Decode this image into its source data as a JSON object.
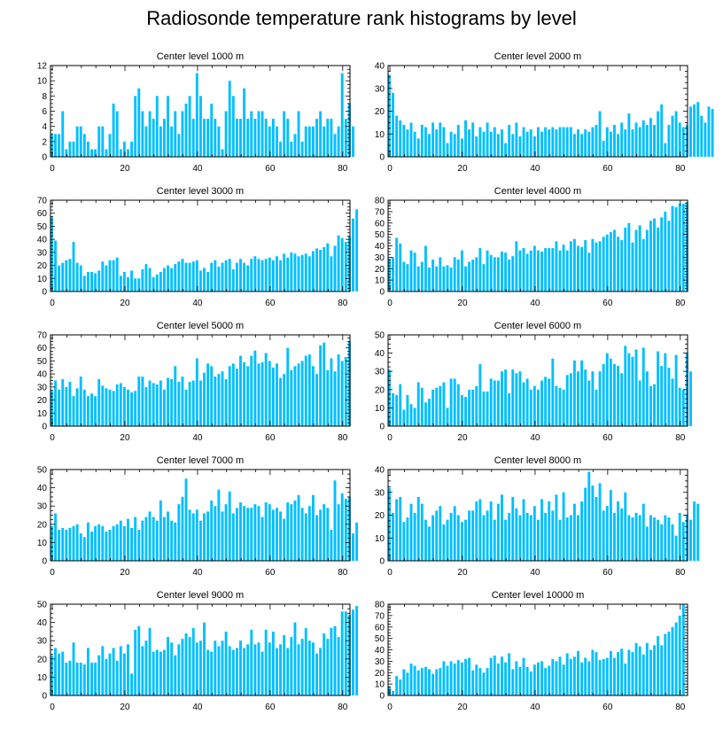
{
  "title": "Radiosonde temperature rank histograms by level",
  "bar_color": "#00bfff",
  "chart_data": [
    {
      "type": "bar",
      "title": "Center level 1000 m",
      "ylim": [
        0,
        12
      ],
      "yticks": [
        0,
        2,
        4,
        6,
        8,
        10,
        12
      ],
      "xlim": [
        -0.5,
        82
      ],
      "xticks": [
        0,
        20,
        40,
        60,
        80
      ],
      "values": [
        3,
        3,
        3,
        6,
        1,
        2,
        2,
        4,
        4,
        3,
        2,
        1,
        1,
        4,
        4,
        1,
        3,
        7,
        6,
        1,
        2,
        1,
        2,
        8,
        9,
        6,
        4,
        6,
        5,
        8,
        4,
        5,
        8,
        4,
        6,
        3,
        6,
        7,
        8,
        5,
        11,
        8,
        5,
        5,
        7,
        5,
        4,
        1,
        6,
        10,
        8,
        5,
        5,
        9,
        5,
        6,
        5,
        6,
        6,
        5,
        4,
        5,
        4,
        2,
        6,
        5,
        2,
        3,
        6,
        2,
        4,
        4,
        4,
        5,
        6,
        4,
        5,
        5,
        3,
        4,
        11,
        5,
        7,
        4
      ]
    },
    {
      "type": "bar",
      "title": "Center level 2000 m",
      "ylim": [
        0,
        40
      ],
      "yticks": [
        0,
        10,
        20,
        30,
        40
      ],
      "xlim": [
        -0.5,
        82
      ],
      "xticks": [
        0,
        20,
        40,
        60,
        80
      ],
      "values": [
        36,
        28,
        18,
        16,
        14,
        12,
        15,
        11,
        8,
        14,
        13,
        10,
        15,
        12,
        15,
        13,
        6,
        11,
        10,
        14,
        8,
        16,
        12,
        15,
        9,
        13,
        11,
        15,
        11,
        13,
        10,
        12,
        6,
        14,
        10,
        15,
        9,
        13,
        11,
        12,
        9,
        13,
        11,
        13,
        12,
        13,
        12,
        13,
        13,
        13,
        13,
        10,
        12,
        10,
        12,
        11,
        13,
        14,
        20,
        7,
        13,
        11,
        14,
        10,
        15,
        12,
        19,
        12,
        15,
        13,
        16,
        14,
        17,
        14,
        20,
        23,
        6,
        14,
        18,
        20,
        15,
        13,
        14,
        22,
        23,
        24,
        18,
        15,
        22,
        21
      ]
    },
    {
      "type": "bar",
      "title": "Center level 3000 m",
      "ylim": [
        0,
        70
      ],
      "yticks": [
        0,
        10,
        20,
        30,
        40,
        50,
        60,
        70
      ],
      "xlim": [
        -0.5,
        82
      ],
      "xticks": [
        0,
        20,
        40,
        60,
        80
      ],
      "values": [
        57,
        39,
        20,
        22,
        24,
        25,
        38,
        22,
        20,
        12,
        15,
        15,
        14,
        16,
        23,
        20,
        24,
        24,
        26,
        12,
        15,
        11,
        16,
        10,
        10,
        17,
        21,
        18,
        11,
        13,
        15,
        18,
        20,
        18,
        21,
        23,
        25,
        22,
        22,
        23,
        24,
        16,
        18,
        15,
        22,
        24,
        19,
        22,
        24,
        25,
        17,
        22,
        25,
        22,
        20,
        25,
        27,
        25,
        24,
        25,
        26,
        24,
        27,
        24,
        29,
        26,
        30,
        29,
        27,
        28,
        29,
        27,
        31,
        33,
        32,
        34,
        37,
        27,
        35,
        43,
        41,
        38,
        42,
        56,
        63
      ]
    },
    {
      "type": "bar",
      "title": "Center level 4000 m",
      "ylim": [
        0,
        80
      ],
      "yticks": [
        0,
        10,
        20,
        30,
        40,
        50,
        60,
        70,
        80
      ],
      "xlim": [
        -0.5,
        82
      ],
      "xticks": [
        0,
        20,
        40,
        60,
        80
      ],
      "values": [
        29,
        30,
        47,
        42,
        26,
        24,
        36,
        34,
        22,
        26,
        40,
        21,
        28,
        22,
        30,
        22,
        23,
        21,
        30,
        28,
        36,
        22,
        26,
        28,
        30,
        38,
        24,
        36,
        32,
        30,
        30,
        35,
        34,
        28,
        31,
        44,
        36,
        38,
        33,
        36,
        40,
        36,
        35,
        38,
        38,
        38,
        44,
        36,
        41,
        36,
        44,
        46,
        40,
        39,
        45,
        34,
        46,
        43,
        44,
        48,
        50,
        52,
        54,
        48,
        45,
        56,
        60,
        43,
        54,
        58,
        46,
        54,
        62,
        64,
        56,
        65,
        70,
        62,
        75,
        74,
        77,
        77,
        78
      ]
    },
    {
      "type": "bar",
      "title": "Center level 5000 m",
      "ylim": [
        0,
        70
      ],
      "yticks": [
        0,
        10,
        20,
        30,
        40,
        50,
        60,
        70
      ],
      "xlim": [
        -0.5,
        82
      ],
      "xticks": [
        0,
        20,
        40,
        60,
        80
      ],
      "values": [
        27,
        35,
        28,
        36,
        30,
        34,
        23,
        29,
        38,
        28,
        23,
        25,
        23,
        36,
        31,
        29,
        28,
        27,
        32,
        33,
        30,
        28,
        26,
        27,
        38,
        38,
        30,
        35,
        33,
        32,
        35,
        28,
        37,
        36,
        46,
        34,
        38,
        28,
        34,
        35,
        52,
        35,
        41,
        48,
        46,
        38,
        40,
        42,
        36,
        46,
        48,
        44,
        54,
        49,
        46,
        54,
        58,
        48,
        49,
        56,
        50,
        45,
        48,
        37,
        40,
        60,
        43,
        46,
        48,
        50,
        54,
        55,
        46,
        40,
        62,
        64,
        43,
        52,
        42,
        55,
        50,
        53,
        65
      ]
    },
    {
      "type": "bar",
      "title": "Center level 6000 m",
      "ylim": [
        0,
        50
      ],
      "yticks": [
        0,
        10,
        20,
        30,
        40,
        50
      ],
      "xlim": [
        -0.5,
        82
      ],
      "xticks": [
        0,
        20,
        40,
        60,
        80
      ],
      "values": [
        31,
        18,
        17,
        23,
        9,
        17,
        12,
        10,
        24,
        21,
        13,
        15,
        20,
        21,
        22,
        24,
        10,
        26,
        26,
        23,
        17,
        16,
        20,
        20,
        22,
        34,
        19,
        19,
        26,
        25,
        25,
        30,
        31,
        18,
        31,
        29,
        30,
        24,
        26,
        20,
        22,
        20,
        25,
        27,
        26,
        37,
        22,
        21,
        20,
        28,
        29,
        36,
        30,
        36,
        31,
        25,
        30,
        20,
        30,
        34,
        40,
        37,
        34,
        33,
        29,
        44,
        40,
        38,
        42,
        25,
        43,
        30,
        22,
        23,
        41,
        33,
        40,
        32,
        26,
        39,
        21,
        20,
        40,
        30
      ]
    },
    {
      "type": "bar",
      "title": "Center level 7000 m",
      "ylim": [
        0,
        50
      ],
      "yticks": [
        0,
        10,
        20,
        30,
        40,
        50
      ],
      "xlim": [
        -0.5,
        82
      ],
      "xticks": [
        0,
        20,
        40,
        60,
        80
      ],
      "values": [
        19,
        26,
        17,
        18,
        17,
        18,
        19,
        20,
        15,
        13,
        21,
        16,
        19,
        20,
        19,
        16,
        17,
        19,
        20,
        22,
        19,
        23,
        18,
        24,
        17,
        22,
        24,
        27,
        24,
        22,
        33,
        24,
        27,
        22,
        21,
        31,
        35,
        45,
        28,
        26,
        28,
        22,
        26,
        27,
        33,
        30,
        39,
        27,
        31,
        38,
        26,
        29,
        32,
        30,
        29,
        29,
        31,
        30,
        24,
        32,
        31,
        28,
        29,
        27,
        23,
        32,
        31,
        33,
        36,
        29,
        26,
        30,
        36,
        25,
        28,
        31,
        29,
        17,
        44,
        31,
        37,
        34,
        35,
        15,
        21
      ]
    },
    {
      "type": "bar",
      "title": "Center level 8000 m",
      "ylim": [
        0,
        40
      ],
      "yticks": [
        0,
        10,
        20,
        30,
        40
      ],
      "xlim": [
        -0.5,
        82
      ],
      "xticks": [
        0,
        20,
        40,
        60,
        80
      ],
      "values": [
        32,
        21,
        27,
        28,
        17,
        19,
        25,
        21,
        28,
        25,
        18,
        15,
        20,
        22,
        24,
        16,
        18,
        21,
        24,
        20,
        17,
        18,
        22,
        22,
        26,
        27,
        20,
        22,
        26,
        18,
        25,
        29,
        18,
        21,
        28,
        23,
        20,
        27,
        21,
        20,
        24,
        18,
        27,
        21,
        26,
        22,
        29,
        18,
        30,
        19,
        20,
        25,
        20,
        26,
        32,
        39,
        33,
        28,
        34,
        22,
        24,
        31,
        21,
        26,
        23,
        30,
        20,
        19,
        21,
        20,
        25,
        15,
        20,
        19,
        18,
        16,
        20,
        19,
        16,
        11,
        21,
        17,
        20,
        18,
        26,
        25
      ]
    },
    {
      "type": "bar",
      "title": "Center level 9000 m",
      "ylim": [
        0,
        50
      ],
      "yticks": [
        0,
        10,
        20,
        30,
        40,
        50
      ],
      "xlim": [
        -0.5,
        82
      ],
      "xticks": [
        0,
        20,
        40,
        60,
        80
      ],
      "values": [
        22,
        26,
        23,
        24,
        18,
        19,
        29,
        18,
        18,
        17,
        26,
        18,
        18,
        22,
        27,
        20,
        23,
        26,
        19,
        27,
        23,
        28,
        12,
        36,
        38,
        27,
        30,
        37,
        24,
        25,
        24,
        25,
        32,
        29,
        22,
        28,
        31,
        34,
        32,
        37,
        29,
        30,
        40,
        25,
        24,
        30,
        27,
        30,
        35,
        27,
        25,
        26,
        30,
        26,
        28,
        36,
        28,
        29,
        24,
        36,
        29,
        35,
        26,
        28,
        33,
        26,
        32,
        40,
        28,
        31,
        37,
        30,
        29,
        23,
        26,
        34,
        31,
        37,
        38,
        32,
        46,
        46,
        44,
        47,
        49
      ]
    },
    {
      "type": "bar",
      "title": "Center level 10000 m",
      "ylim": [
        0,
        80
      ],
      "yticks": [
        0,
        10,
        20,
        30,
        40,
        50,
        60,
        70,
        80
      ],
      "xlim": [
        -0.5,
        82
      ],
      "xticks": [
        0,
        20,
        40,
        60,
        80
      ],
      "values": [
        8,
        4,
        17,
        14,
        23,
        20,
        28,
        26,
        22,
        24,
        25,
        23,
        19,
        23,
        24,
        30,
        26,
        30,
        28,
        31,
        29,
        32,
        33,
        22,
        27,
        24,
        20,
        24,
        33,
        35,
        28,
        34,
        29,
        37,
        23,
        30,
        25,
        33,
        25,
        21,
        27,
        29,
        30,
        24,
        26,
        32,
        30,
        34,
        27,
        37,
        32,
        34,
        39,
        29,
        33,
        30,
        40,
        38,
        31,
        32,
        33,
        39,
        33,
        38,
        41,
        28,
        40,
        38,
        46,
        43,
        36,
        46,
        40,
        44,
        52,
        44,
        54,
        56,
        60,
        64,
        70,
        80
      ]
    }
  ]
}
